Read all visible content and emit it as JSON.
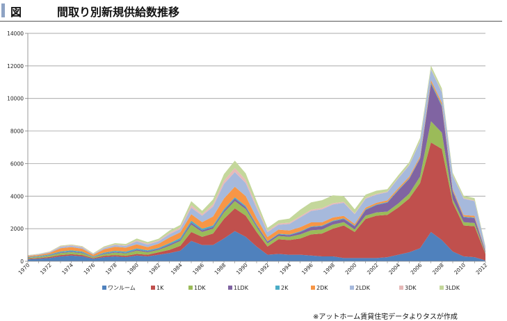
{
  "header": {
    "label": "図",
    "title": "間取り別新規供給数推移"
  },
  "chart_data": {
    "type": "area",
    "stacked": true,
    "x": [
      1970,
      1971,
      1972,
      1973,
      1974,
      1975,
      1976,
      1977,
      1978,
      1979,
      1980,
      1981,
      1982,
      1983,
      1984,
      1985,
      1986,
      1987,
      1988,
      1989,
      1990,
      1991,
      1992,
      1993,
      1994,
      1995,
      1996,
      1997,
      1998,
      1999,
      2000,
      2001,
      2002,
      2003,
      2004,
      2005,
      2006,
      2007,
      2008,
      2009,
      2010,
      2011,
      2012
    ],
    "x_ticks": [
      1970,
      1972,
      1974,
      1976,
      1978,
      1980,
      1982,
      1984,
      1986,
      1988,
      1990,
      1992,
      1994,
      1996,
      1998,
      2000,
      2002,
      2004,
      2006,
      2008,
      2010,
      2012
    ],
    "ylim": [
      0,
      14000
    ],
    "y_ticks": [
      0,
      2000,
      4000,
      6000,
      8000,
      10000,
      12000,
      14000
    ],
    "grid": true,
    "legend_position": "bottom",
    "series": [
      {
        "name": "ワンルーム",
        "color": "#4f81bd",
        "values": [
          120,
          150,
          200,
          300,
          350,
          300,
          150,
          250,
          300,
          250,
          350,
          300,
          400,
          500,
          650,
          1250,
          1000,
          1000,
          1400,
          1850,
          1500,
          900,
          400,
          450,
          400,
          400,
          350,
          300,
          300,
          200,
          200,
          200,
          200,
          250,
          400,
          550,
          800,
          1800,
          1300,
          600,
          300,
          250,
          50
        ]
      },
      {
        "name": "1K",
        "color": "#c0504d",
        "values": [
          40,
          50,
          60,
          80,
          80,
          80,
          40,
          80,
          80,
          80,
          100,
          100,
          150,
          200,
          300,
          550,
          500,
          700,
          1200,
          1400,
          1300,
          900,
          500,
          900,
          900,
          1000,
          1300,
          1400,
          1700,
          2000,
          1600,
          2400,
          2600,
          2600,
          2900,
          3300,
          4000,
          5500,
          5600,
          3000,
          1900,
          1900,
          400
        ]
      },
      {
        "name": "1DK",
        "color": "#9bbb59",
        "values": [
          50,
          60,
          80,
          120,
          130,
          110,
          60,
          100,
          150,
          150,
          200,
          150,
          150,
          250,
          300,
          450,
          300,
          300,
          400,
          450,
          400,
          300,
          200,
          200,
          200,
          250,
          250,
          250,
          250,
          200,
          150,
          200,
          200,
          200,
          250,
          300,
          400,
          1300,
          1000,
          200,
          200,
          200,
          50
        ]
      },
      {
        "name": "1LDK",
        "color": "#8064a2",
        "values": [
          20,
          20,
          30,
          40,
          40,
          40,
          20,
          40,
          40,
          40,
          60,
          60,
          60,
          80,
          80,
          120,
          100,
          100,
          100,
          150,
          120,
          100,
          100,
          100,
          100,
          150,
          200,
          200,
          200,
          200,
          200,
          350,
          450,
          550,
          800,
          900,
          1100,
          2300,
          1600,
          500,
          300,
          300,
          100
        ]
      },
      {
        "name": "2K",
        "color": "#4bacc6",
        "values": [
          30,
          40,
          50,
          60,
          70,
          60,
          30,
          60,
          70,
          70,
          80,
          60,
          60,
          80,
          100,
          120,
          100,
          100,
          100,
          80,
          80,
          60,
          40,
          40,
          40,
          40,
          40,
          40,
          40,
          40,
          40,
          40,
          40,
          40,
          40,
          40,
          40,
          80,
          80,
          40,
          40,
          40,
          20
        ]
      },
      {
        "name": "2DK",
        "color": "#f79646",
        "values": [
          60,
          70,
          90,
          200,
          200,
          180,
          100,
          200,
          250,
          250,
          250,
          200,
          250,
          350,
          350,
          400,
          400,
          550,
          650,
          650,
          600,
          400,
          250,
          250,
          250,
          250,
          250,
          200,
          200,
          150,
          100,
          100,
          100,
          100,
          100,
          100,
          100,
          150,
          150,
          100,
          100,
          100,
          50
        ]
      },
      {
        "name": "2LDK",
        "color": "#a6b9dc",
        "values": [
          20,
          30,
          40,
          80,
          80,
          80,
          40,
          80,
          100,
          100,
          180,
          150,
          150,
          200,
          200,
          400,
          400,
          600,
          900,
          900,
          800,
          600,
          300,
          300,
          400,
          600,
          700,
          800,
          800,
          800,
          600,
          550,
          500,
          500,
          600,
          700,
          900,
          650,
          650,
          800,
          1000,
          900,
          200
        ]
      },
      {
        "name": "3DK",
        "color": "#e6b9b8",
        "values": [
          20,
          20,
          30,
          40,
          40,
          40,
          20,
          40,
          40,
          40,
          60,
          60,
          60,
          80,
          100,
          150,
          100,
          150,
          200,
          250,
          200,
          150,
          80,
          80,
          80,
          80,
          80,
          80,
          80,
          60,
          50,
          50,
          50,
          40,
          40,
          40,
          40,
          40,
          40,
          40,
          40,
          40,
          20
        ]
      },
      {
        "name": "3LDK",
        "color": "#c4d79b",
        "values": [
          20,
          20,
          20,
          40,
          40,
          40,
          30,
          60,
          80,
          80,
          120,
          100,
          100,
          150,
          150,
          250,
          200,
          300,
          400,
          450,
          400,
          300,
          180,
          200,
          250,
          400,
          450,
          480,
          480,
          350,
          250,
          200,
          200,
          150,
          150,
          150,
          200,
          200,
          200,
          150,
          150,
          150,
          50
        ]
      }
    ]
  },
  "footer_note": "※アットホーム賃貸住宅データよりタスが作成"
}
